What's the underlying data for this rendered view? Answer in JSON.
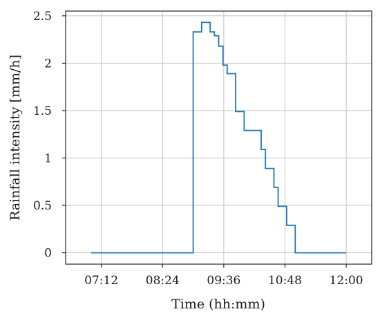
{
  "chart_data": {
    "type": "line",
    "step": "post",
    "xlabel": "Time (hh:mm)",
    "ylabel": "Rainfall intensity [mm/h]",
    "x_unit": "hh:mm",
    "xlim": [
      "06:30",
      "12:30"
    ],
    "ylim": [
      -0.12,
      2.55
    ],
    "xticks": [
      "07:12",
      "08:24",
      "09:36",
      "10:48",
      "12:00"
    ],
    "yticks": [
      0,
      0.5,
      1,
      1.5,
      2,
      2.5
    ],
    "ytick_labels": [
      "0",
      "0.5",
      "1",
      "1.5",
      "2",
      "2.5"
    ],
    "grid": true,
    "series": [
      {
        "color": "#1f77b4",
        "x": [
          "07:00",
          "07:10",
          "07:20",
          "07:30",
          "07:40",
          "07:50",
          "08:00",
          "08:10",
          "08:20",
          "08:30",
          "08:40",
          "08:50",
          "09:00",
          "09:10",
          "09:20",
          "09:25",
          "09:30",
          "09:35",
          "09:40",
          "09:50",
          "10:00",
          "10:10",
          "10:20",
          "10:25",
          "10:30",
          "10:35",
          "10:40",
          "10:50",
          "11:00",
          "11:10",
          "11:20",
          "11:30",
          "11:40",
          "11:50",
          "12:00"
        ],
        "y": [
          0,
          0,
          0,
          0,
          0,
          0,
          0,
          0,
          0,
          0,
          0,
          0,
          2.33,
          2.43,
          2.33,
          2.29,
          2.18,
          1.98,
          1.89,
          1.49,
          1.29,
          1.29,
          1.09,
          0.89,
          0.89,
          0.69,
          0.49,
          0.29,
          0,
          0,
          0,
          0,
          0,
          0,
          0
        ]
      }
    ]
  }
}
